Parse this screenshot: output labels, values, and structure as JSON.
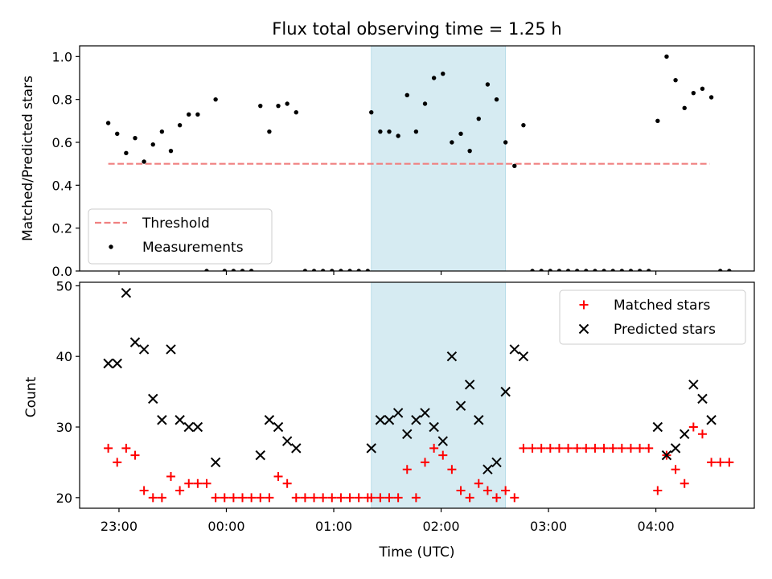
{
  "chart_data": [
    {
      "type": "scatter",
      "title": "Flux total observing time = 1.25 h",
      "ylabel": "Matched/Predicted stars",
      "xlim": [
        "22:38",
        "04:55"
      ],
      "ylim": [
        0,
        1.05
      ],
      "yticks": [
        0.0,
        0.2,
        0.4,
        0.6,
        0.8,
        1.0
      ],
      "ytick_labels": [
        "0.0",
        "0.2",
        "0.4",
        "0.6",
        "0.8",
        "1.0"
      ],
      "highlight_span": [
        "01:21",
        "02:36"
      ],
      "threshold": {
        "name": "Threshold",
        "value": 0.5,
        "x": [
          "22:54",
          "04:30"
        ],
        "color": "#f08080"
      },
      "legend": {
        "placement": "lower-left",
        "entries": [
          "Threshold",
          "Measurements"
        ]
      },
      "series": [
        {
          "name": "Measurements",
          "color": "#000000",
          "points": [
            [
              "22:54",
              0.69
            ],
            [
              "22:59",
              0.64
            ],
            [
              "23:04",
              0.55
            ],
            [
              "23:09",
              0.62
            ],
            [
              "23:14",
              0.51
            ],
            [
              "23:19",
              0.59
            ],
            [
              "23:24",
              0.65
            ],
            [
              "23:29",
              0.56
            ],
            [
              "23:34",
              0.68
            ],
            [
              "23:39",
              0.73
            ],
            [
              "23:44",
              0.73
            ],
            [
              "23:49",
              0.0
            ],
            [
              "23:54",
              0.8
            ],
            [
              "23:59",
              0.0
            ],
            [
              "00:04",
              0.0
            ],
            [
              "00:09",
              0.0
            ],
            [
              "00:14",
              0.0
            ],
            [
              "00:19",
              0.77
            ],
            [
              "00:24",
              0.65
            ],
            [
              "00:29",
              0.77
            ],
            [
              "00:34",
              0.78
            ],
            [
              "00:39",
              0.74
            ],
            [
              "00:44",
              0.0
            ],
            [
              "00:49",
              0.0
            ],
            [
              "00:54",
              0.0
            ],
            [
              "00:59",
              0.0
            ],
            [
              "01:04",
              0.0
            ],
            [
              "01:09",
              0.0
            ],
            [
              "01:14",
              0.0
            ],
            [
              "01:19",
              0.0
            ],
            [
              "01:21",
              0.74
            ],
            [
              "01:26",
              0.65
            ],
            [
              "01:31",
              0.65
            ],
            [
              "01:36",
              0.63
            ],
            [
              "01:41",
              0.82
            ],
            [
              "01:46",
              0.65
            ],
            [
              "01:51",
              0.78
            ],
            [
              "01:56",
              0.9
            ],
            [
              "02:01",
              0.92
            ],
            [
              "02:06",
              0.6
            ],
            [
              "02:11",
              0.64
            ],
            [
              "02:16",
              0.56
            ],
            [
              "02:21",
              0.71
            ],
            [
              "02:26",
              0.87
            ],
            [
              "02:31",
              0.8
            ],
            [
              "02:36",
              0.6
            ],
            [
              "02:41",
              0.49
            ],
            [
              "02:46",
              0.68
            ],
            [
              "02:51",
              0.0
            ],
            [
              "02:56",
              0.0
            ],
            [
              "03:01",
              0.0
            ],
            [
              "03:06",
              0.0
            ],
            [
              "03:11",
              0.0
            ],
            [
              "03:16",
              0.0
            ],
            [
              "03:21",
              0.0
            ],
            [
              "03:26",
              0.0
            ],
            [
              "03:31",
              0.0
            ],
            [
              "03:36",
              0.0
            ],
            [
              "03:41",
              0.0
            ],
            [
              "03:46",
              0.0
            ],
            [
              "03:51",
              0.0
            ],
            [
              "03:56",
              0.0
            ],
            [
              "04:01",
              0.7
            ],
            [
              "04:06",
              1.0
            ],
            [
              "04:11",
              0.89
            ],
            [
              "04:16",
              0.76
            ],
            [
              "04:21",
              0.83
            ],
            [
              "04:26",
              0.85
            ],
            [
              "04:31",
              0.81
            ],
            [
              "04:36",
              0.0
            ],
            [
              "04:41",
              0.0
            ]
          ]
        }
      ]
    },
    {
      "type": "scatter",
      "xlabel": "Time (UTC)",
      "ylabel": "Count",
      "xlim": [
        "22:38",
        "04:55"
      ],
      "ylim": [
        18.5,
        50.5
      ],
      "yticks": [
        20,
        30,
        40,
        50
      ],
      "ytick_labels": [
        "20",
        "30",
        "40",
        "50"
      ],
      "xticks": [
        "23:00",
        "00:00",
        "01:00",
        "02:00",
        "03:00",
        "04:00"
      ],
      "xtick_labels": [
        "23:00",
        "00:00",
        "01:00",
        "02:00",
        "03:00",
        "04:00"
      ],
      "highlight_span": [
        "01:21",
        "02:36"
      ],
      "legend": {
        "placement": "top-right",
        "entries": [
          "Matched stars",
          "Predicted stars"
        ]
      },
      "series": [
        {
          "name": "Matched stars",
          "marker": "+",
          "color": "#ff0000",
          "points": [
            [
              "22:54",
              27
            ],
            [
              "22:59",
              25
            ],
            [
              "23:04",
              27
            ],
            [
              "23:09",
              26
            ],
            [
              "23:14",
              21
            ],
            [
              "23:19",
              20
            ],
            [
              "23:24",
              20
            ],
            [
              "23:29",
              23
            ],
            [
              "23:34",
              21
            ],
            [
              "23:39",
              22
            ],
            [
              "23:44",
              22
            ],
            [
              "23:49",
              22
            ],
            [
              "23:54",
              20
            ],
            [
              "23:59",
              20
            ],
            [
              "00:04",
              20
            ],
            [
              "00:09",
              20
            ],
            [
              "00:14",
              20
            ],
            [
              "00:19",
              20
            ],
            [
              "00:24",
              20
            ],
            [
              "00:29",
              23
            ],
            [
              "00:34",
              22
            ],
            [
              "00:39",
              20
            ],
            [
              "00:44",
              20
            ],
            [
              "00:49",
              20
            ],
            [
              "00:54",
              20
            ],
            [
              "00:59",
              20
            ],
            [
              "01:04",
              20
            ],
            [
              "01:09",
              20
            ],
            [
              "01:14",
              20
            ],
            [
              "01:19",
              20
            ],
            [
              "01:21",
              20
            ],
            [
              "01:26",
              20
            ],
            [
              "01:31",
              20
            ],
            [
              "01:36",
              20
            ],
            [
              "01:41",
              24
            ],
            [
              "01:46",
              20
            ],
            [
              "01:51",
              25
            ],
            [
              "01:56",
              27
            ],
            [
              "02:01",
              26
            ],
            [
              "02:06",
              24
            ],
            [
              "02:11",
              21
            ],
            [
              "02:16",
              20
            ],
            [
              "02:21",
              22
            ],
            [
              "02:26",
              21
            ],
            [
              "02:31",
              20
            ],
            [
              "02:36",
              21
            ],
            [
              "02:41",
              20
            ],
            [
              "02:46",
              27
            ],
            [
              "02:51",
              27
            ],
            [
              "02:56",
              27
            ],
            [
              "03:01",
              27
            ],
            [
              "03:06",
              27
            ],
            [
              "03:11",
              27
            ],
            [
              "03:16",
              27
            ],
            [
              "03:21",
              27
            ],
            [
              "03:26",
              27
            ],
            [
              "03:31",
              27
            ],
            [
              "03:36",
              27
            ],
            [
              "03:41",
              27
            ],
            [
              "03:46",
              27
            ],
            [
              "03:51",
              27
            ],
            [
              "03:56",
              27
            ],
            [
              "04:01",
              21
            ],
            [
              "04:06",
              26
            ],
            [
              "04:11",
              24
            ],
            [
              "04:16",
              22
            ],
            [
              "04:21",
              30
            ],
            [
              "04:26",
              29
            ],
            [
              "04:31",
              25
            ],
            [
              "04:36",
              25
            ],
            [
              "04:41",
              25
            ]
          ]
        },
        {
          "name": "Predicted stars",
          "marker": "x",
          "color": "#000000",
          "points": [
            [
              "22:54",
              39
            ],
            [
              "22:59",
              39
            ],
            [
              "23:04",
              49
            ],
            [
              "23:09",
              42
            ],
            [
              "23:14",
              41
            ],
            [
              "23:19",
              34
            ],
            [
              "23:24",
              31
            ],
            [
              "23:29",
              41
            ],
            [
              "23:34",
              31
            ],
            [
              "23:39",
              30
            ],
            [
              "23:44",
              30
            ],
            [
              "23:54",
              25
            ],
            [
              "00:19",
              26
            ],
            [
              "00:24",
              31
            ],
            [
              "00:29",
              30
            ],
            [
              "00:34",
              28
            ],
            [
              "00:39",
              27
            ],
            [
              "01:21",
              27
            ],
            [
              "01:26",
              31
            ],
            [
              "01:31",
              31
            ],
            [
              "01:36",
              32
            ],
            [
              "01:41",
              29
            ],
            [
              "01:46",
              31
            ],
            [
              "01:51",
              32
            ],
            [
              "01:56",
              30
            ],
            [
              "02:01",
              28
            ],
            [
              "02:06",
              40
            ],
            [
              "02:11",
              33
            ],
            [
              "02:16",
              36
            ],
            [
              "02:21",
              31
            ],
            [
              "02:26",
              24
            ],
            [
              "02:31",
              25
            ],
            [
              "02:36",
              35
            ],
            [
              "02:41",
              41
            ],
            [
              "02:46",
              40
            ],
            [
              "04:01",
              30
            ],
            [
              "04:06",
              26
            ],
            [
              "04:11",
              27
            ],
            [
              "04:16",
              29
            ],
            [
              "04:21",
              36
            ],
            [
              "04:26",
              34
            ],
            [
              "04:31",
              31
            ]
          ]
        }
      ]
    }
  ]
}
